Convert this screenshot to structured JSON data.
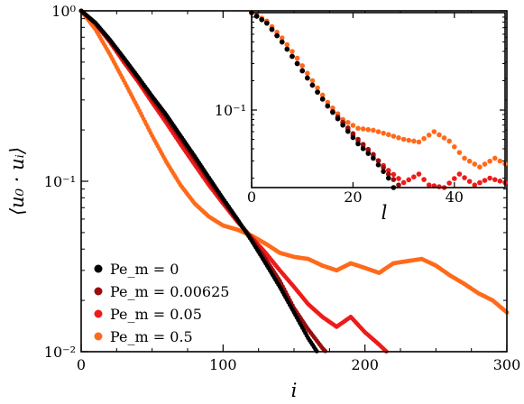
{
  "chart_data": [
    {
      "type": "scatter",
      "title": "",
      "xlabel": "i",
      "ylabel": "⟨u₀ · uᵢ⟩",
      "x_range": [
        0,
        300
      ],
      "y_range": [
        0.01,
        1
      ],
      "y_scale": "log",
      "x_ticks": [
        0,
        100,
        200,
        300
      ],
      "x_tick_labels": [
        "0",
        "100",
        "200",
        "300"
      ],
      "y_ticks": [
        0.01,
        0.1,
        1
      ],
      "y_tick_labels": [
        "10⁻²",
        "10⁻¹",
        "10⁰"
      ],
      "legend_position": "bottom-left",
      "series": [
        {
          "name": "Pe_m = 0",
          "color": "#000000",
          "x": [
            0,
            10,
            20,
            30,
            40,
            50,
            60,
            70,
            80,
            90,
            100,
            110,
            120,
            130,
            140,
            150,
            160,
            168
          ],
          "y": [
            1.0,
            0.85,
            0.68,
            0.53,
            0.41,
            0.315,
            0.245,
            0.185,
            0.14,
            0.105,
            0.079,
            0.06,
            0.045,
            0.033,
            0.024,
            0.017,
            0.012,
            0.0095
          ]
        },
        {
          "name": "Pe_m = 0.00625",
          "color": "#9b0d0d",
          "x": [
            0,
            10,
            20,
            30,
            40,
            50,
            60,
            70,
            80,
            90,
            100,
            110,
            120,
            130,
            140,
            150,
            160,
            170,
            175
          ],
          "y": [
            1.0,
            0.85,
            0.67,
            0.52,
            0.4,
            0.305,
            0.235,
            0.178,
            0.135,
            0.101,
            0.077,
            0.059,
            0.046,
            0.035,
            0.026,
            0.018,
            0.0135,
            0.0105,
            0.0095
          ]
        },
        {
          "name": "Pe_m = 0.05",
          "color": "#ee1b1b",
          "x": [
            0,
            10,
            20,
            30,
            40,
            50,
            60,
            70,
            80,
            90,
            100,
            110,
            120,
            130,
            140,
            150,
            160,
            170,
            180,
            190,
            200,
            210,
            218
          ],
          "y": [
            1.0,
            0.84,
            0.66,
            0.5,
            0.385,
            0.29,
            0.22,
            0.165,
            0.125,
            0.095,
            0.074,
            0.058,
            0.047,
            0.038,
            0.03,
            0.024,
            0.019,
            0.016,
            0.014,
            0.016,
            0.013,
            0.011,
            0.0095
          ]
        },
        {
          "name": "Pe_m = 0.5",
          "color": "#ff6a1a",
          "x": [
            0,
            10,
            20,
            30,
            40,
            50,
            60,
            70,
            80,
            90,
            100,
            110,
            120,
            130,
            140,
            150,
            160,
            170,
            180,
            190,
            200,
            210,
            220,
            230,
            240,
            250,
            260,
            270,
            280,
            290,
            300
          ],
          "y": [
            1.0,
            0.78,
            0.56,
            0.39,
            0.27,
            0.185,
            0.13,
            0.095,
            0.074,
            0.062,
            0.055,
            0.052,
            0.048,
            0.043,
            0.038,
            0.036,
            0.035,
            0.032,
            0.03,
            0.033,
            0.031,
            0.029,
            0.033,
            0.034,
            0.035,
            0.032,
            0.028,
            0.025,
            0.022,
            0.02,
            0.017
          ]
        }
      ]
    },
    {
      "type": "scatter",
      "title": "",
      "xlabel": "l",
      "ylabel": "",
      "x_range": [
        0,
        50
      ],
      "y_range": [
        0.016,
        1
      ],
      "y_scale": "log",
      "x_ticks": [
        0,
        20,
        40
      ],
      "x_tick_labels": [
        "0",
        "20",
        "40"
      ],
      "y_ticks": [
        0.1
      ],
      "y_tick_labels": [
        "10⁻¹"
      ],
      "series": [
        {
          "name": "Pe_m = 0",
          "color": "#000000",
          "x": [
            0,
            3,
            6,
            9,
            12,
            15,
            18,
            21,
            24,
            27,
            28
          ],
          "y": [
            1.0,
            0.78,
            0.5,
            0.3,
            0.18,
            0.11,
            0.07,
            0.045,
            0.032,
            0.02,
            0.016
          ]
        },
        {
          "name": "Pe_m = 0.00625",
          "color": "#9b0d0d",
          "x": [
            0,
            3,
            6,
            9,
            12,
            15,
            18,
            21,
            24,
            27,
            29
          ],
          "y": [
            1.0,
            0.78,
            0.5,
            0.3,
            0.18,
            0.11,
            0.075,
            0.05,
            0.035,
            0.022,
            0.017
          ]
        },
        {
          "name": "Pe_m = 0.05",
          "color": "#ee1b1b",
          "x": [
            0,
            3,
            6,
            9,
            12,
            15,
            18,
            21,
            24,
            27,
            30,
            33,
            35,
            38,
            41,
            44,
            47,
            50
          ],
          "y": [
            1.0,
            0.78,
            0.5,
            0.3,
            0.18,
            0.11,
            0.072,
            0.048,
            0.034,
            0.024,
            0.018,
            0.022,
            0.017,
            0.016,
            0.022,
            0.017,
            0.02,
            0.018
          ]
        },
        {
          "name": "Pe_m = 0.5",
          "color": "#ff6a1a",
          "x": [
            0,
            3,
            6,
            9,
            12,
            15,
            18,
            21,
            24,
            27,
            30,
            33,
            36,
            39,
            42,
            45,
            48,
            50
          ],
          "y": [
            1.0,
            0.82,
            0.55,
            0.34,
            0.2,
            0.12,
            0.08,
            0.065,
            0.062,
            0.056,
            0.05,
            0.047,
            0.06,
            0.048,
            0.032,
            0.026,
            0.032,
            0.028
          ]
        }
      ]
    }
  ]
}
